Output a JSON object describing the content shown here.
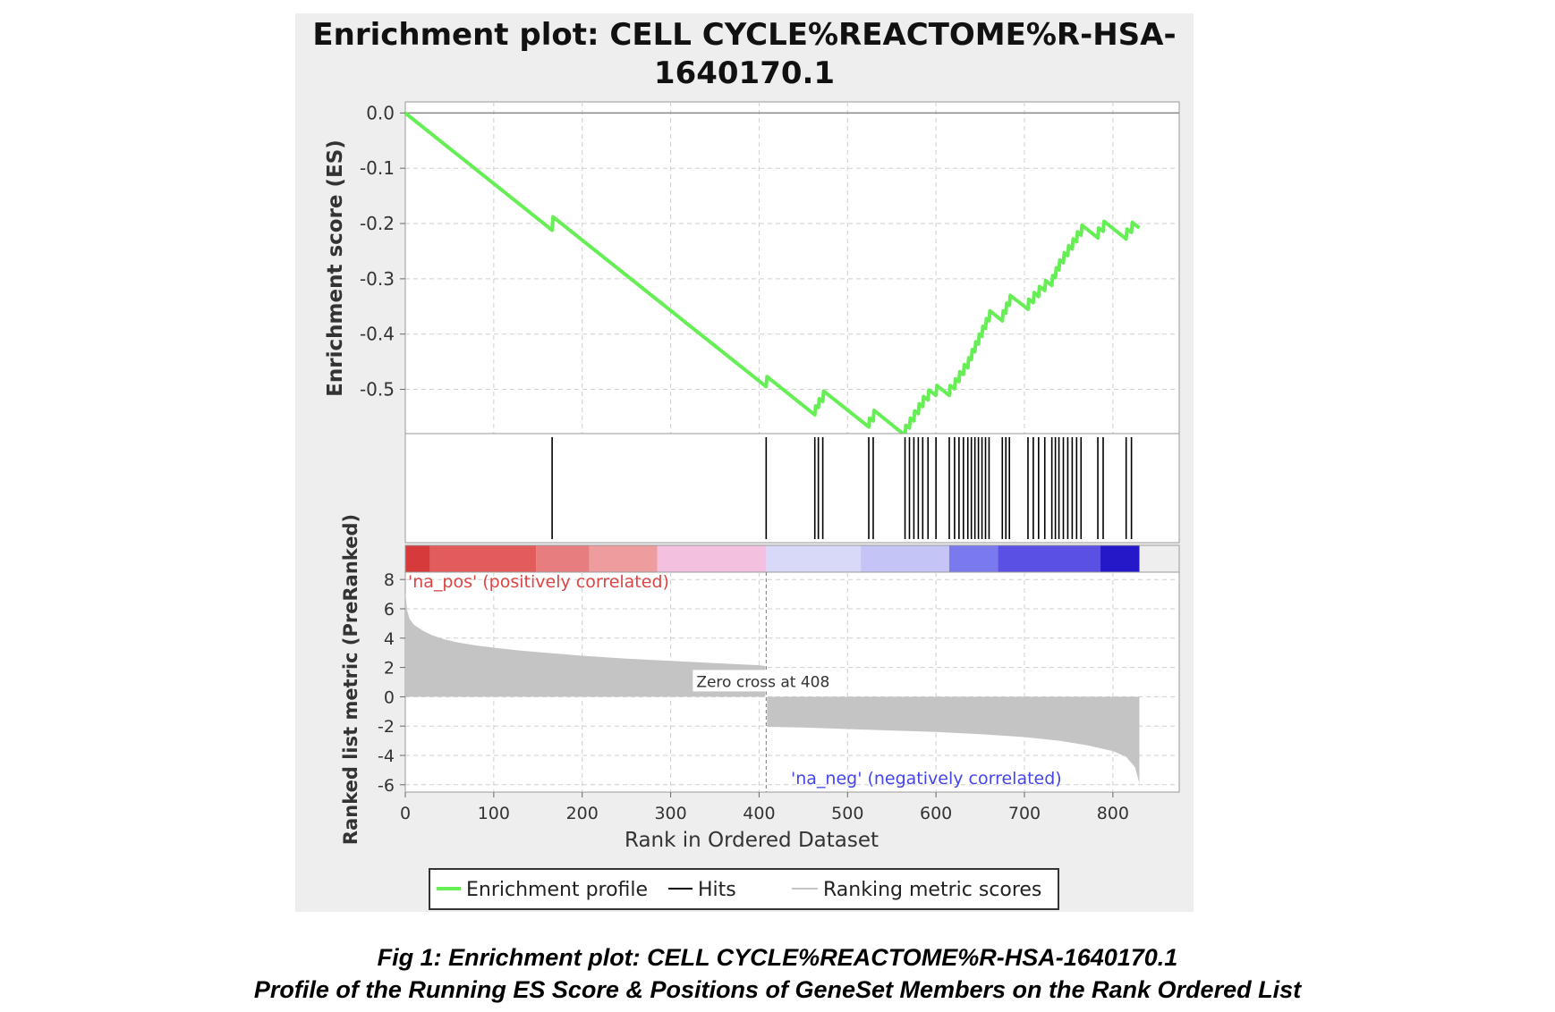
{
  "figure": {
    "caption_line1": "Fig 1: Enrichment plot: CELL CYCLE%REACTOME%R-HSA-1640170.1",
    "caption_line2": "Profile of the Running ES Score & Positions of GeneSet Members on the Rank Ordered List"
  },
  "colors": {
    "panel_bg": "#eeeeee",
    "es_line": "#66ee55",
    "hits": "#000000",
    "metric_fill": "#c4c4c4",
    "pos_label": "#dd4444",
    "neg_label": "#4444ee",
    "grid": "#cfcfcf"
  },
  "chart_data": {
    "type": "line",
    "title_line1": "Enrichment plot: CELL CYCLE%REACTOME%R-HSA-",
    "title_line2": "1640170.1",
    "xlabel": "Rank in Ordered Dataset",
    "xlim": [
      0,
      875
    ],
    "x_ticks": [
      0,
      100,
      200,
      300,
      400,
      500,
      600,
      700,
      800
    ],
    "es_panel": {
      "ylabel": "Enrichment score (ES)",
      "ylim": [
        -0.58,
        0.02
      ],
      "y_ticks": [
        0.0,
        -0.1,
        -0.2,
        -0.3,
        -0.4,
        -0.5
      ],
      "y_tick_labels": [
        "0.0",
        "-0.1",
        "-0.2",
        "-0.3",
        "-0.4",
        "-0.5"
      ],
      "grid": true,
      "series": [
        {
          "name": "Enrichment profile",
          "points": [
            [
              0,
              0.0
            ],
            [
              166,
              -0.212
            ],
            [
              167,
              -0.188
            ],
            [
              408,
              -0.495
            ],
            [
              409,
              -0.477
            ],
            [
              463,
              -0.546
            ],
            [
              464,
              -0.53
            ],
            [
              467,
              -0.533
            ],
            [
              468,
              -0.517
            ],
            [
              472,
              -0.522
            ],
            [
              473,
              -0.503
            ],
            [
              524,
              -0.568
            ],
            [
              525,
              -0.552
            ],
            [
              529,
              -0.557
            ],
            [
              530,
              -0.538
            ],
            [
              565,
              -0.583
            ],
            [
              566,
              -0.565
            ],
            [
              570,
              -0.57
            ],
            [
              571,
              -0.552
            ],
            [
              575,
              -0.557
            ],
            [
              576,
              -0.539
            ],
            [
              580,
              -0.544
            ],
            [
              581,
              -0.526
            ],
            [
              585,
              -0.531
            ],
            [
              586,
              -0.513
            ],
            [
              591,
              -0.519
            ],
            [
              592,
              -0.501
            ],
            [
              600,
              -0.511
            ],
            [
              601,
              -0.493
            ],
            [
              615,
              -0.511
            ],
            [
              616,
              -0.493
            ],
            [
              621,
              -0.499
            ],
            [
              622,
              -0.481
            ],
            [
              626,
              -0.486
            ],
            [
              627,
              -0.468
            ],
            [
              631,
              -0.473
            ],
            [
              632,
              -0.455
            ],
            [
              636,
              -0.461
            ],
            [
              637,
              -0.443
            ],
            [
              640,
              -0.446
            ],
            [
              641,
              -0.428
            ],
            [
              644,
              -0.432
            ],
            [
              645,
              -0.414
            ],
            [
              648,
              -0.418
            ],
            [
              649,
              -0.4
            ],
            [
              652,
              -0.404
            ],
            [
              653,
              -0.386
            ],
            [
              656,
              -0.39
            ],
            [
              657,
              -0.372
            ],
            [
              660,
              -0.376
            ],
            [
              661,
              -0.358
            ],
            [
              675,
              -0.376
            ],
            [
              676,
              -0.358
            ],
            [
              679,
              -0.362
            ],
            [
              680,
              -0.344
            ],
            [
              683,
              -0.348
            ],
            [
              684,
              -0.33
            ],
            [
              704,
              -0.355
            ],
            [
              705,
              -0.337
            ],
            [
              710,
              -0.343
            ],
            [
              711,
              -0.325
            ],
            [
              716,
              -0.332
            ],
            [
              717,
              -0.314
            ],
            [
              723,
              -0.321
            ],
            [
              724,
              -0.303
            ],
            [
              731,
              -0.312
            ],
            [
              732,
              -0.294
            ],
            [
              735,
              -0.298
            ],
            [
              736,
              -0.28
            ],
            [
              739,
              -0.284
            ],
            [
              740,
              -0.266
            ],
            [
              744,
              -0.271
            ],
            [
              745,
              -0.253
            ],
            [
              749,
              -0.258
            ],
            [
              750,
              -0.24
            ],
            [
              754,
              -0.246
            ],
            [
              755,
              -0.228
            ],
            [
              759,
              -0.233
            ],
            [
              760,
              -0.215
            ],
            [
              764,
              -0.221
            ],
            [
              765,
              -0.203
            ],
            [
              783,
              -0.226
            ],
            [
              784,
              -0.208
            ],
            [
              789,
              -0.214
            ],
            [
              790,
              -0.196
            ],
            [
              815,
              -0.228
            ],
            [
              816,
              -0.21
            ],
            [
              821,
              -0.216
            ],
            [
              822,
              -0.198
            ],
            [
              830,
              -0.208
            ]
          ]
        }
      ]
    },
    "hits_panel": {
      "series_name": "Hits",
      "positions": [
        166,
        408,
        463,
        467,
        472,
        524,
        529,
        565,
        570,
        575,
        580,
        585,
        591,
        600,
        615,
        621,
        626,
        631,
        636,
        640,
        644,
        648,
        652,
        656,
        660,
        675,
        679,
        683,
        704,
        710,
        716,
        723,
        731,
        735,
        739,
        744,
        749,
        754,
        759,
        764,
        783,
        789,
        815,
        821
      ]
    },
    "color_bar": {
      "segments": [
        {
          "to": 28,
          "color": "#d63a3a"
        },
        {
          "to": 148,
          "color": "#e25c5c"
        },
        {
          "to": 208,
          "color": "#e87d80"
        },
        {
          "to": 285,
          "color": "#ee9c9e"
        },
        {
          "to": 408,
          "color": "#f3c0e0"
        },
        {
          "to": 515,
          "color": "#d8d8f8"
        },
        {
          "to": 615,
          "color": "#c4c4f6"
        },
        {
          "to": 670,
          "color": "#7a7aee"
        },
        {
          "to": 786,
          "color": "#5a50e4"
        },
        {
          "to": 830,
          "color": "#2418c8"
        }
      ]
    },
    "metric_panel": {
      "ylabel": "Ranked list metric (PreRanked)",
      "ylim": [
        -6.5,
        8.5
      ],
      "y_ticks": [
        8,
        6,
        4,
        2,
        0,
        -2,
        -4,
        -6
      ],
      "series_name": "Ranking metric scores",
      "zero_cross_label": "Zero cross at 408",
      "zero_cross": 408,
      "pos_label": "'na_pos' (positively correlated)",
      "neg_label": "'na_neg' (negatively correlated)",
      "points": [
        [
          0,
          7.2
        ],
        [
          2,
          5.9
        ],
        [
          5,
          5.3
        ],
        [
          10,
          4.9
        ],
        [
          20,
          4.5
        ],
        [
          30,
          4.2
        ],
        [
          45,
          3.9
        ],
        [
          60,
          3.7
        ],
        [
          80,
          3.5
        ],
        [
          100,
          3.35
        ],
        [
          130,
          3.15
        ],
        [
          160,
          3.0
        ],
        [
          200,
          2.8
        ],
        [
          250,
          2.6
        ],
        [
          300,
          2.45
        ],
        [
          350,
          2.3
        ],
        [
          400,
          2.15
        ],
        [
          407,
          2.1
        ],
        [
          408,
          0.0
        ],
        [
          409,
          -2.05
        ],
        [
          450,
          -2.1
        ],
        [
          500,
          -2.2
        ],
        [
          550,
          -2.3
        ],
        [
          600,
          -2.4
        ],
        [
          650,
          -2.55
        ],
        [
          700,
          -2.75
        ],
        [
          740,
          -3.0
        ],
        [
          770,
          -3.3
        ],
        [
          800,
          -3.7
        ],
        [
          815,
          -4.1
        ],
        [
          825,
          -4.8
        ],
        [
          830,
          -5.9
        ]
      ]
    },
    "legend": {
      "position": "bottom",
      "items": [
        "Enrichment profile",
        "Hits",
        "Ranking metric scores"
      ]
    }
  }
}
